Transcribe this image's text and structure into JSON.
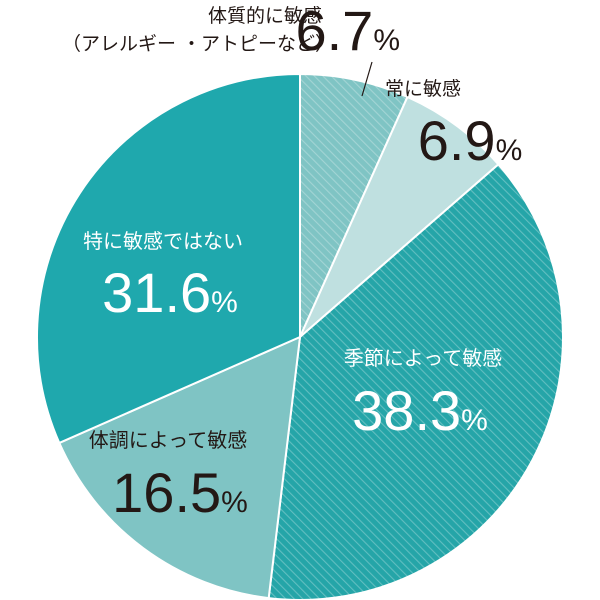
{
  "chart_data": {
    "type": "pie",
    "unit": "%",
    "start_angle_deg": 0,
    "direction": "clockwise",
    "slices": [
      {
        "label": "体質的に敏感",
        "sublabel": "（アレルギー ・アトピーなど）",
        "value": 6.7,
        "value_text": "6.7",
        "color": "#7fc4c4",
        "hatch": true,
        "label_color": "#231815"
      },
      {
        "label": "常に敏感",
        "value": 6.9,
        "value_text": "6.9",
        "color": "#bfe0e0",
        "hatch": false,
        "label_color": "#231815"
      },
      {
        "label": "季節によって敏感",
        "value": 38.3,
        "value_text": "38.3",
        "color": "#25a5a8",
        "hatch": true,
        "label_color": "#ffffff"
      },
      {
        "label": "体調によって敏感",
        "value": 16.5,
        "value_text": "16.5",
        "color": "#7fc4c4",
        "hatch": false,
        "label_color": "#231815"
      },
      {
        "label": "特に敏感ではない",
        "value": 31.6,
        "value_text": "31.6",
        "color": "#1fa8ad",
        "hatch": false,
        "label_color": "#ffffff"
      }
    ]
  }
}
